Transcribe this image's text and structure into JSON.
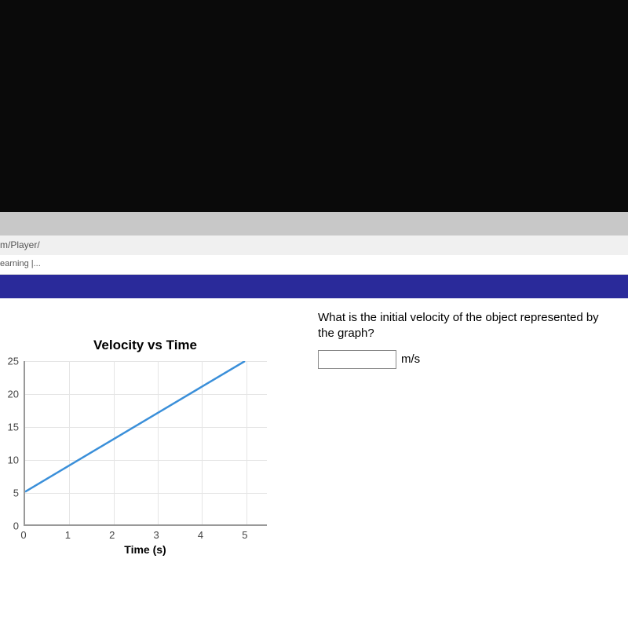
{
  "url_fragment": "m/Player/",
  "tab_title": "earning |...",
  "question": {
    "text": "What is the initial velocity of the object represented by the graph?",
    "input_value": "",
    "unit": "m/s"
  },
  "chart": {
    "type": "line",
    "title": "Velocity vs Time",
    "xlabel": "Time (s)",
    "x_ticks": [
      0,
      1,
      2,
      3,
      4,
      5
    ],
    "y_ticks": [
      0,
      5,
      10,
      15,
      20,
      25
    ],
    "xlim": [
      0,
      5.5
    ],
    "ylim": [
      0,
      25
    ],
    "line_points": [
      [
        0,
        5
      ],
      [
        5,
        25
      ]
    ],
    "line_color": "#3a8fd9",
    "line_width": 2.5,
    "grid_color": "#e5e5e5",
    "axis_color": "#999999",
    "background_color": "#ffffff",
    "title_fontsize": 17,
    "label_fontsize": 14,
    "tick_fontsize": 13
  },
  "colors": {
    "blue_band": "#2a2a9a",
    "grey_band": "#c8c8c8",
    "black_top": "#0a0a0a"
  }
}
